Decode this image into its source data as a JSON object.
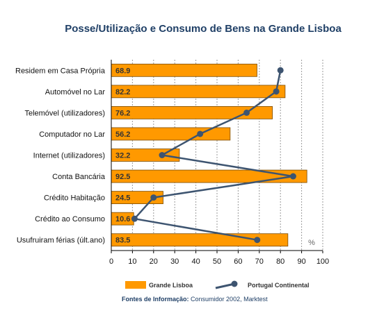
{
  "chart_data": {
    "type": "bar",
    "orientation": "horizontal",
    "title": "Posse/Utilização e Consumo de Bens na Grande Lisboa",
    "categories": [
      "Residem em Casa Própria",
      "Automóvel no Lar",
      "Telemóvel (utilizadores)",
      "Computador no Lar",
      "Internet (utilizadores)",
      "Conta Bancária",
      "Crédito Habitação",
      "Crédito ao Consumo",
      "Usufruiram férias (últ.ano)"
    ],
    "series": [
      {
        "name": "Grande Lisboa",
        "kind": "bar",
        "color": "#FF9900",
        "values": [
          68.9,
          82.2,
          76.2,
          56.2,
          32.2,
          92.5,
          24.5,
          10.6,
          83.5
        ]
      },
      {
        "name": "Portugal Continental",
        "kind": "line",
        "color": "#3D5470",
        "values": [
          80,
          78,
          64,
          42,
          24,
          86,
          20,
          11,
          69
        ]
      }
    ],
    "xlim": [
      0,
      100
    ],
    "xticks": [
      "0",
      "10",
      "20",
      "30",
      "40",
      "50",
      "60",
      "70",
      "80",
      "90",
      "100"
    ],
    "grid": "vertical dashed",
    "unit_label": "%",
    "legend_position": "bottom"
  },
  "source": {
    "label": "Fontes de Informação:",
    "text": "Consumidor 2002, Marktest"
  },
  "colors": {
    "title": "#1F3F66",
    "bar": "#FF9900",
    "line": "#3D5470",
    "source": "#1F3F66"
  }
}
